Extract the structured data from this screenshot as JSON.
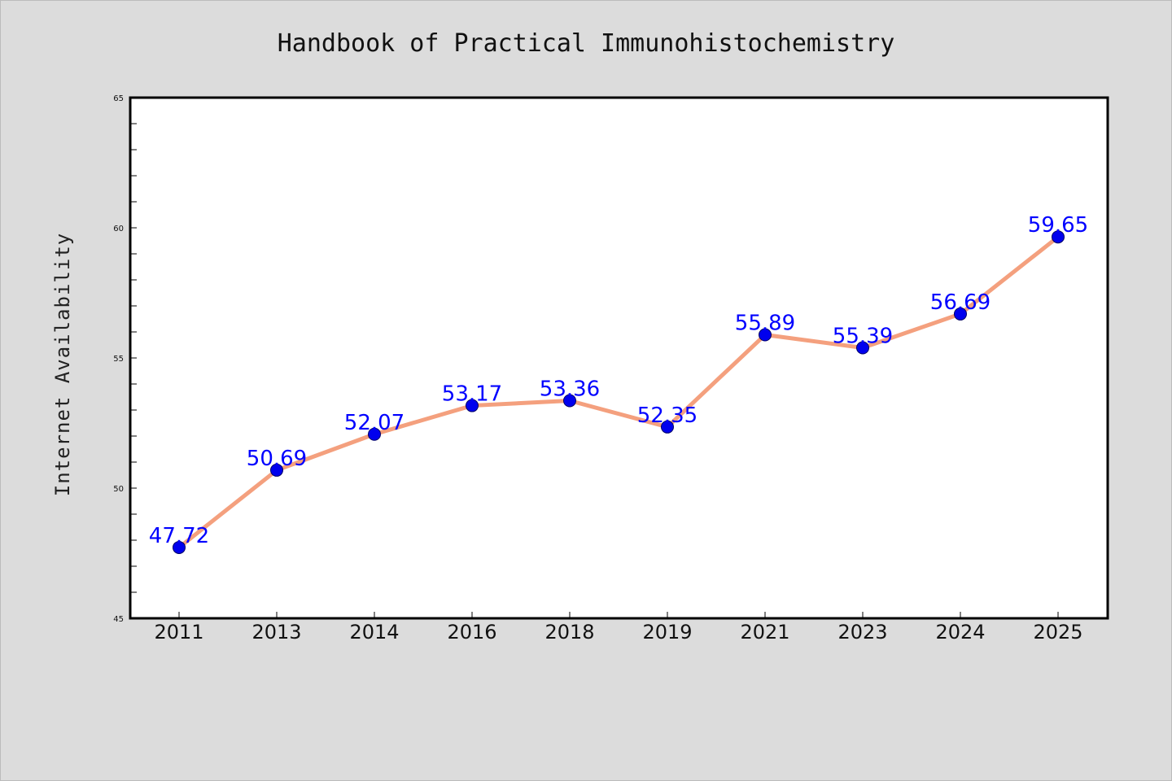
{
  "chart_data": {
    "type": "line",
    "title": "Handbook of Practical Immunohistochemistry",
    "xlabel": "",
    "ylabel": "Internet Availability",
    "categories": [
      "2011",
      "2013",
      "2014",
      "2016",
      "2018",
      "2019",
      "2021",
      "2023",
      "2024",
      "2025"
    ],
    "series": [
      {
        "values": [
          47.72,
          50.69,
          52.07,
          53.17,
          53.36,
          52.35,
          55.89,
          55.39,
          56.69,
          59.65
        ],
        "data_labels": [
          "47.72",
          "50.69",
          "52.07",
          "53.17",
          "53.36",
          "52.35",
          "55.89",
          "55.39",
          "56.69",
          "59.65"
        ]
      }
    ],
    "ylim": [
      45,
      65
    ],
    "yticks": [
      "45",
      "50",
      "55",
      "60",
      "65"
    ],
    "grid": false,
    "legend": "none",
    "colors": {
      "line": "#f4a07e",
      "marker": "#0000ee",
      "data_label": "#0000ff",
      "plot_background": "#ffffff",
      "figure_background": "#dcdcdc"
    }
  }
}
